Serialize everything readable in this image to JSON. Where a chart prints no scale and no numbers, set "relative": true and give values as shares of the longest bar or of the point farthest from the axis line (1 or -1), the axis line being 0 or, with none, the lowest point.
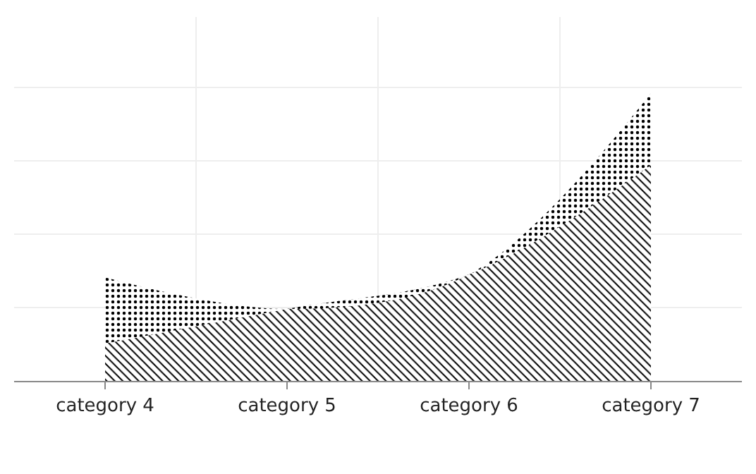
{
  "chart_data": {
    "type": "area",
    "relative": true,
    "stacked": true,
    "grid": true,
    "categories": [
      "category 4",
      "category 5",
      "category 6",
      "category 7"
    ],
    "series": [
      {
        "color": "#000000",
        "values": [
          0.13,
          0.25,
          0.37,
          0.75
        ]
      },
      {
        "color": "#000000",
        "values": [
          0.23,
          0,
          0,
          0.25
        ]
      }
    ]
  }
}
